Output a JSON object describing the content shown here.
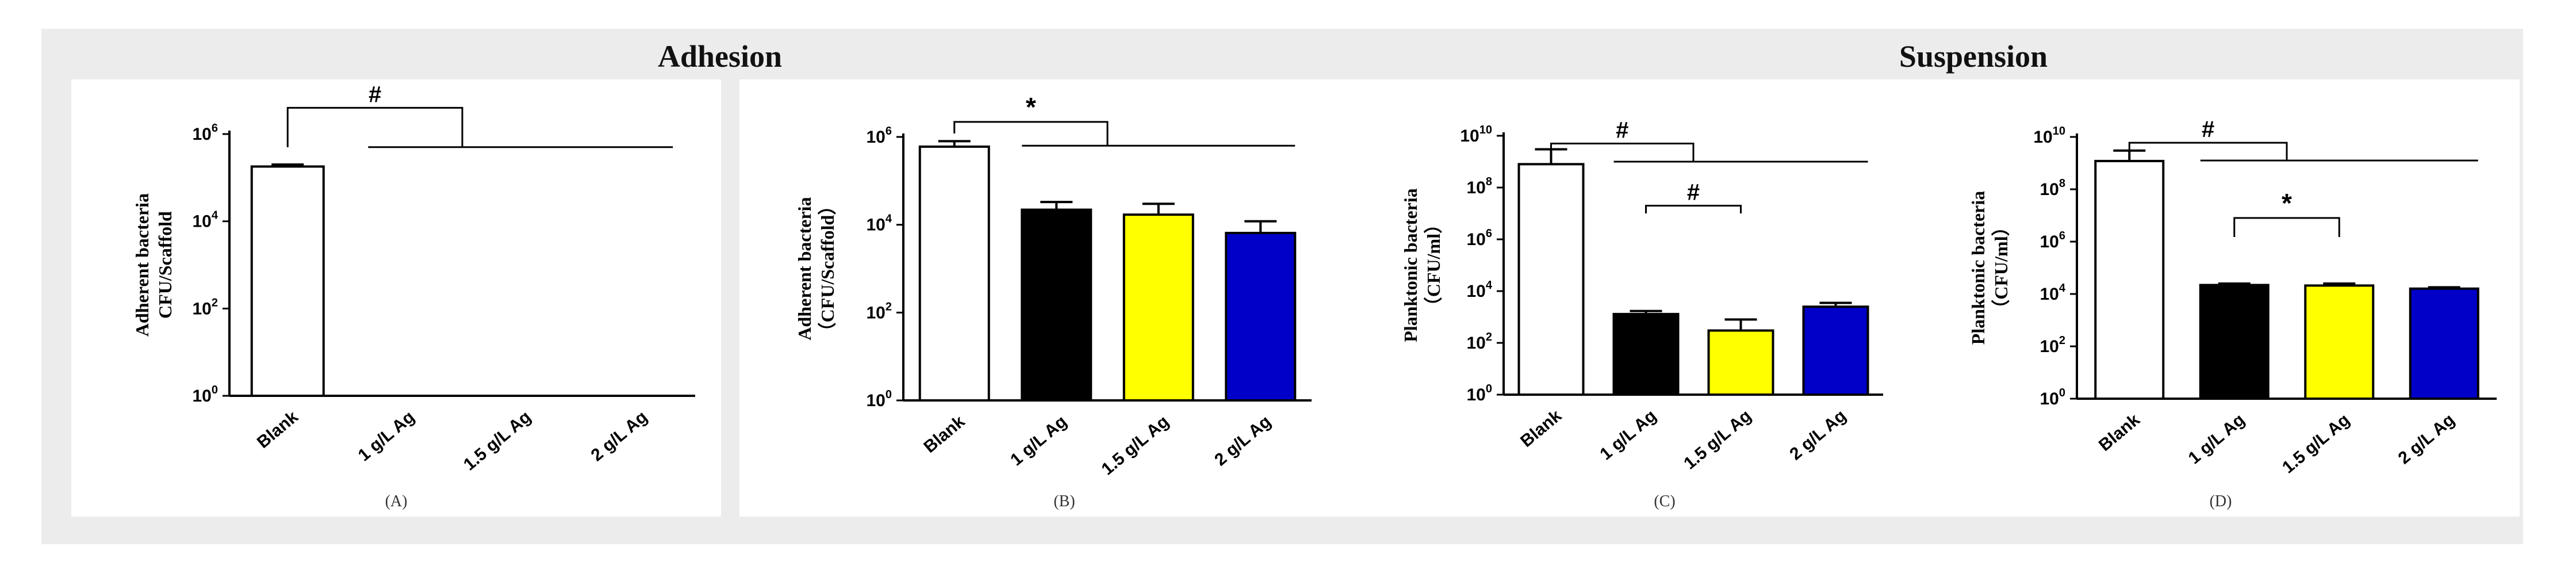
{
  "figure": {
    "groups": [
      {
        "title": "Adhesion"
      },
      {
        "title": "Suspension"
      }
    ]
  },
  "colors": {
    "blank": "#ffffff",
    "ag1": "#000000",
    "ag15": "#ffff00",
    "ag2": "#0000c8",
    "axis": "#000000"
  },
  "chart_data": [
    {
      "panel_label": "(A)",
      "type": "bar",
      "scale": "log10",
      "ylabel_lines": [
        "Adherent bacteria",
        "CFU/Scaffold"
      ],
      "categories": [
        "Blank",
        "1 g/L Ag",
        "1.5 g/L Ag",
        "2 g/L Ag"
      ],
      "values": [
        180000,
        null,
        null,
        null
      ],
      "error_upper": [
        200000,
        null,
        null,
        null
      ],
      "ylim": [
        1,
        1000000
      ],
      "yticks": [
        {
          "exp": "0"
        },
        {
          "exp": "2"
        },
        {
          "exp": "4"
        },
        {
          "exp": "6"
        }
      ],
      "brackets": [
        {
          "from": 0,
          "to": 3,
          "symbol": "#",
          "level": 4000000.0,
          "arm_end": 500000,
          "line_to_exp": 5.7
        }
      ]
    },
    {
      "panel_label": "(B)",
      "type": "bar",
      "scale": "log10",
      "ylabel_lines": [
        "Adherent bacteria",
        "（CFU/Scaffold）"
      ],
      "categories": [
        "Blank",
        "1 g/L Ag",
        "1.5 g/L Ag",
        "2 g/L Ag"
      ],
      "values": [
        600000,
        22000,
        17000,
        6500
      ],
      "error_upper": [
        800000,
        33000,
        30000,
        12000
      ],
      "ylim": [
        1,
        1000000
      ],
      "yticks": [
        {
          "exp": "0"
        },
        {
          "exp": "2"
        },
        {
          "exp": "4"
        },
        {
          "exp": "6"
        }
      ],
      "brackets": [
        {
          "from": 0,
          "to": 3,
          "symbol": "*",
          "level": 2200000.0,
          "arm_end": 1200000,
          "line_to_exp": 5.8
        }
      ]
    },
    {
      "panel_label": "(C)",
      "type": "bar",
      "scale": "log10",
      "ylabel_lines": [
        "Planktonic bacteria",
        "（CFU/ml）"
      ],
      "categories": [
        "Blank",
        "1 g/L Ag",
        "1.5 g/L Ag",
        "2 g/L Ag"
      ],
      "values": [
        800000000,
        1300,
        300,
        2500
      ],
      "error_upper": [
        3000000000,
        1700,
        800,
        3500
      ],
      "ylim": [
        1,
        10000000000
      ],
      "yticks": [
        {
          "exp": "0"
        },
        {
          "exp": "2"
        },
        {
          "exp": "4"
        },
        {
          "exp": "6"
        },
        {
          "exp": "8"
        },
        {
          "exp": "10"
        }
      ],
      "brackets": [
        {
          "from": 0,
          "to": 3,
          "symbol": "#",
          "level": 5000000000.0,
          "arm_end": 3000000000,
          "line_to_exp": 9.0
        },
        {
          "from": 1,
          "to": 2,
          "symbol": "#",
          "level": 20000000.0,
          "arm_end": 10000000.0,
          "line_to_exp": null
        }
      ]
    },
    {
      "panel_label": "(D)",
      "type": "bar",
      "scale": "log10",
      "ylabel_lines": [
        "Planktonic bacteria",
        "（CFU/ml）"
      ],
      "categories": [
        "Blank",
        "1 g/L Ag",
        "1.5 g/L Ag",
        "2 g/L Ag"
      ],
      "values": [
        1200000000,
        22000,
        21000,
        16000
      ],
      "error_upper": [
        3000000000,
        25000,
        25000,
        18000
      ],
      "ylim": [
        1,
        10000000000
      ],
      "yticks": [
        {
          "exp": "0"
        },
        {
          "exp": "2"
        },
        {
          "exp": "4"
        },
        {
          "exp": "6"
        },
        {
          "exp": "8"
        },
        {
          "exp": "10"
        }
      ],
      "brackets": [
        {
          "from": 0,
          "to": 3,
          "symbol": "#",
          "level": 6000000000.0,
          "arm_end": 3000000000,
          "line_to_exp": 9.1
        },
        {
          "from": 1,
          "to": 2,
          "symbol": "*",
          "level": 8000000.0,
          "arm_end": 1500000.0,
          "line_to_exp": null
        }
      ]
    }
  ]
}
